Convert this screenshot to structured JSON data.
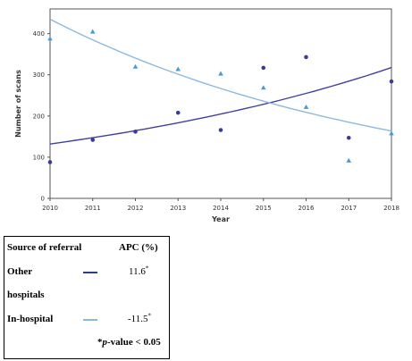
{
  "chart_data": {
    "type": "scatter",
    "title": "",
    "xlabel": "Year",
    "ylabel": "Number of scans",
    "x_ticks": [
      "2010",
      "2011",
      "2012",
      "2013",
      "2014",
      "2015",
      "2016",
      "2017",
      "2018"
    ],
    "y_ticks": [
      "0",
      "100",
      "200",
      "300",
      "400"
    ],
    "xlim": [
      2010,
      2018
    ],
    "ylim": [
      0,
      460
    ],
    "grid": false,
    "series": [
      {
        "name": "Other hospitals",
        "marker": "circle",
        "color": "#3b3b98",
        "x": [
          2010,
          2011,
          2012,
          2013,
          2014,
          2015,
          2016,
          2017,
          2018
        ],
        "y": [
          88,
          142,
          162,
          208,
          166,
          317,
          343,
          147,
          284
        ],
        "trend": {
          "start": 132,
          "apc": 11.6
        }
      },
      {
        "name": "In-hospital",
        "marker": "triangle",
        "color": "#4a9bd4",
        "x": [
          2010,
          2011,
          2012,
          2013,
          2014,
          2015,
          2016,
          2017,
          2018
        ],
        "y": [
          388,
          405,
          320,
          314,
          303,
          269,
          222,
          92,
          158
        ],
        "trend": {
          "start": 435,
          "apc": -11.5
        }
      }
    ],
    "trend_colors": {
      "other": "#4040a0",
      "in_hospital": "#8db8de"
    }
  },
  "legend": {
    "header_source": "Source of referral",
    "header_apc": "APC (%)",
    "rows": [
      {
        "label_line1": "Other",
        "label_line2": "hospitals",
        "value": "11.6",
        "mark": "*",
        "line_color": "#2a3c8c"
      },
      {
        "label_line1": "In-hospital",
        "label_line2": "",
        "value": "-11.5",
        "mark": "*",
        "line_color": "#8db8de"
      }
    ],
    "footnote_star": "*",
    "footnote_p": "p",
    "footnote_rest": "-value < 0.05"
  }
}
